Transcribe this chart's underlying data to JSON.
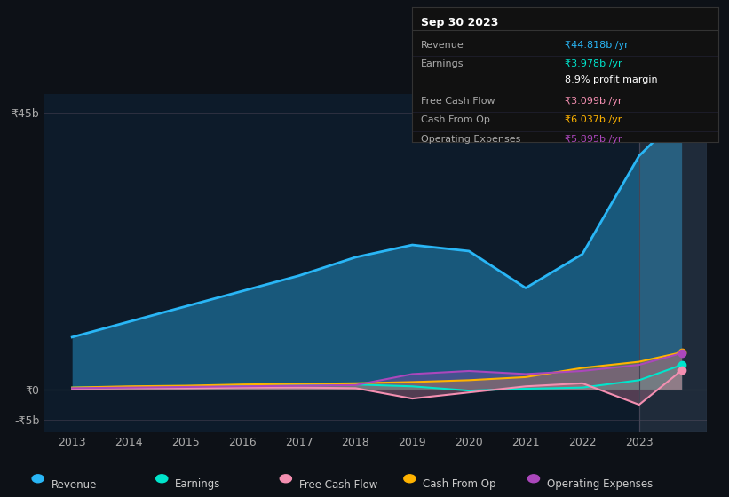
{
  "background_color": "#0d1117",
  "chart_bg": "#0d1b2a",
  "years": [
    2013,
    2014,
    2015,
    2016,
    2017,
    2018,
    2019,
    2020,
    2021,
    2022,
    2023,
    2023.75
  ],
  "revenue": [
    8.5,
    11.0,
    13.5,
    16.0,
    18.5,
    21.5,
    23.5,
    22.5,
    16.5,
    22.0,
    38.0,
    44.818
  ],
  "earnings": [
    0.3,
    0.4,
    0.5,
    0.6,
    0.7,
    0.8,
    0.5,
    -0.2,
    0.1,
    0.3,
    1.5,
    3.978
  ],
  "free_cash_flow": [
    0.1,
    0.2,
    0.2,
    0.3,
    0.3,
    0.2,
    -1.5,
    -0.5,
    0.5,
    1.0,
    -2.5,
    3.099
  ],
  "cash_from_op": [
    0.3,
    0.5,
    0.6,
    0.8,
    0.9,
    1.0,
    1.2,
    1.5,
    2.0,
    3.5,
    4.5,
    6.037
  ],
  "operating_expenses": [
    0.2,
    0.3,
    0.4,
    0.5,
    0.6,
    0.7,
    2.5,
    3.0,
    2.5,
    3.0,
    4.0,
    5.895
  ],
  "ylim": [
    -7,
    48
  ],
  "yticks": [
    -5,
    0,
    45
  ],
  "ytick_labels": [
    "-₹5b",
    "₹0",
    "₹45b"
  ],
  "xtick_labels": [
    "2013",
    "2014",
    "2015",
    "2016",
    "2017",
    "2018",
    "2019",
    "2020",
    "2021",
    "2022",
    "2023"
  ],
  "colors": {
    "revenue": "#29b6f6",
    "earnings": "#00e5cc",
    "free_cash_flow": "#f48fb1",
    "cash_from_op": "#ffb300",
    "operating_expenses": "#ab47bc"
  },
  "legend": [
    {
      "label": "Revenue",
      "color": "#29b6f6"
    },
    {
      "label": "Earnings",
      "color": "#00e5cc"
    },
    {
      "label": "Free Cash Flow",
      "color": "#f48fb1"
    },
    {
      "label": "Cash From Op",
      "color": "#ffb300"
    },
    {
      "label": "Operating Expenses",
      "color": "#ab47bc"
    }
  ],
  "info_box": {
    "title": "Sep 30 2023",
    "rows": [
      {
        "label": "Revenue",
        "value": "₹44.818b /yr",
        "value_color": "#29b6f6",
        "label_color": "#aaaaaa"
      },
      {
        "label": "Earnings",
        "value": "₹3.978b /yr",
        "value_color": "#00e5cc",
        "label_color": "#aaaaaa"
      },
      {
        "label": "",
        "value": "8.9% profit margin",
        "value_color": "#ffffff",
        "label_color": "#aaaaaa"
      },
      {
        "label": "Free Cash Flow",
        "value": "₹3.099b /yr",
        "value_color": "#f48fb1",
        "label_color": "#aaaaaa"
      },
      {
        "label": "Cash From Op",
        "value": "₹6.037b /yr",
        "value_color": "#ffb300",
        "label_color": "#aaaaaa"
      },
      {
        "label": "Operating Expenses",
        "value": "₹5.895b /yr",
        "value_color": "#ab47bc",
        "label_color": "#aaaaaa"
      }
    ]
  }
}
